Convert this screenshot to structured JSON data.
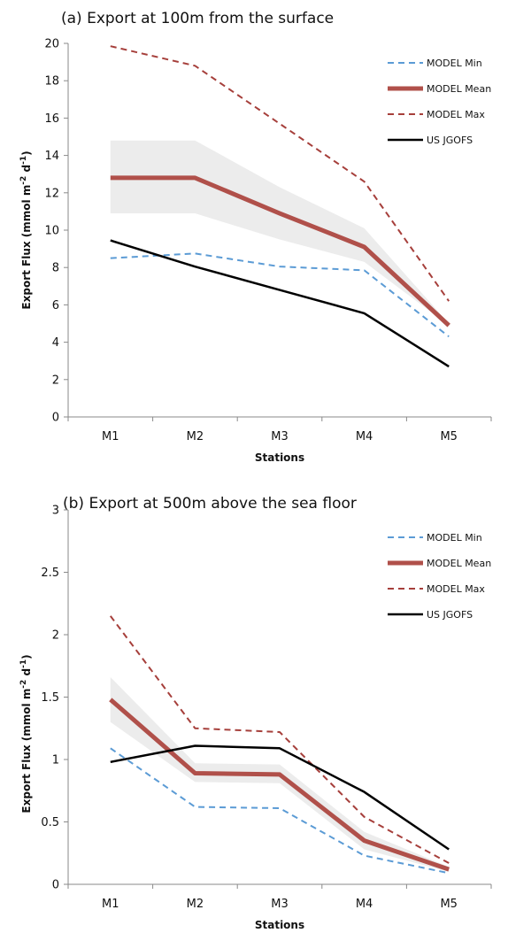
{
  "chart_data": [
    {
      "type": "line",
      "title": "(a)  Export at 100m from the surface",
      "xlabel": "Stations",
      "ylabel_main": "Export Flux (mmol m",
      "ylabel_sup1": "-2",
      "ylabel_mid": " d",
      "ylabel_sup2": "-1",
      "ylabel_end": ")",
      "categories": [
        "M1",
        "M2",
        "M3",
        "M4",
        "M5"
      ],
      "ylim": [
        0,
        20
      ],
      "yticks": [
        "0",
        "2",
        "4",
        "6",
        "8",
        "10",
        "12",
        "14",
        "16",
        "18",
        "20"
      ],
      "grid": false,
      "legend_position": "top-right",
      "band": {
        "lower": [
          10.9,
          10.9,
          9.5,
          8.3,
          4.9
        ],
        "upper": [
          14.8,
          14.8,
          12.3,
          10.1,
          5.0
        ],
        "color": "#ececec"
      },
      "series": [
        {
          "name": "MODEL Min",
          "values": [
            8.5,
            8.75,
            8.05,
            7.85,
            4.3
          ],
          "color": "#5b9bd5",
          "style": "dashed",
          "width": 2
        },
        {
          "name": "MODEL Mean",
          "values": [
            12.8,
            12.8,
            10.9,
            9.1,
            4.9
          ],
          "color": "#b0504a",
          "style": "solid",
          "width": 5
        },
        {
          "name": "MODEL Max",
          "values": [
            19.85,
            18.8,
            15.7,
            12.6,
            6.2
          ],
          "color": "#a63f3b",
          "style": "dashed",
          "width": 2
        },
        {
          "name": "US JGOFS",
          "values": [
            9.45,
            8.05,
            6.8,
            5.55,
            2.7
          ],
          "color": "#000000",
          "style": "solid",
          "width": 2.5
        }
      ]
    },
    {
      "type": "line",
      "title": "(b)  Export at 500m above the sea floor",
      "xlabel": "Stations",
      "ylabel_main": "Export Flux (mmol m",
      "ylabel_sup1": "-2",
      "ylabel_mid": " d",
      "ylabel_sup2": "-1",
      "ylabel_end": ")",
      "categories": [
        "M1",
        "M2",
        "M3",
        "M4",
        "M5"
      ],
      "ylim": [
        0,
        3
      ],
      "yticks": [
        "0",
        "0.5",
        "1",
        "1.5",
        "2",
        "2.5",
        "3"
      ],
      "grid": false,
      "legend_position": "top-right",
      "band": {
        "lower": [
          1.3,
          0.82,
          0.81,
          0.28,
          0.1
        ],
        "upper": [
          1.66,
          0.97,
          0.96,
          0.42,
          0.14
        ],
        "color": "#ececec"
      },
      "series": [
        {
          "name": "MODEL Min",
          "values": [
            1.09,
            0.62,
            0.61,
            0.23,
            0.09
          ],
          "color": "#5b9bd5",
          "style": "dashed",
          "width": 2
        },
        {
          "name": "MODEL Mean",
          "values": [
            1.48,
            0.89,
            0.88,
            0.35,
            0.12
          ],
          "color": "#b0504a",
          "style": "solid",
          "width": 5
        },
        {
          "name": "MODEL Max",
          "values": [
            2.15,
            1.25,
            1.22,
            0.54,
            0.17
          ],
          "color": "#a63f3b",
          "style": "dashed",
          "width": 2
        },
        {
          "name": "US JGOFS",
          "values": [
            0.98,
            1.11,
            1.09,
            0.74,
            0.28
          ],
          "color": "#000000",
          "style": "solid",
          "width": 2.5
        }
      ]
    }
  ]
}
